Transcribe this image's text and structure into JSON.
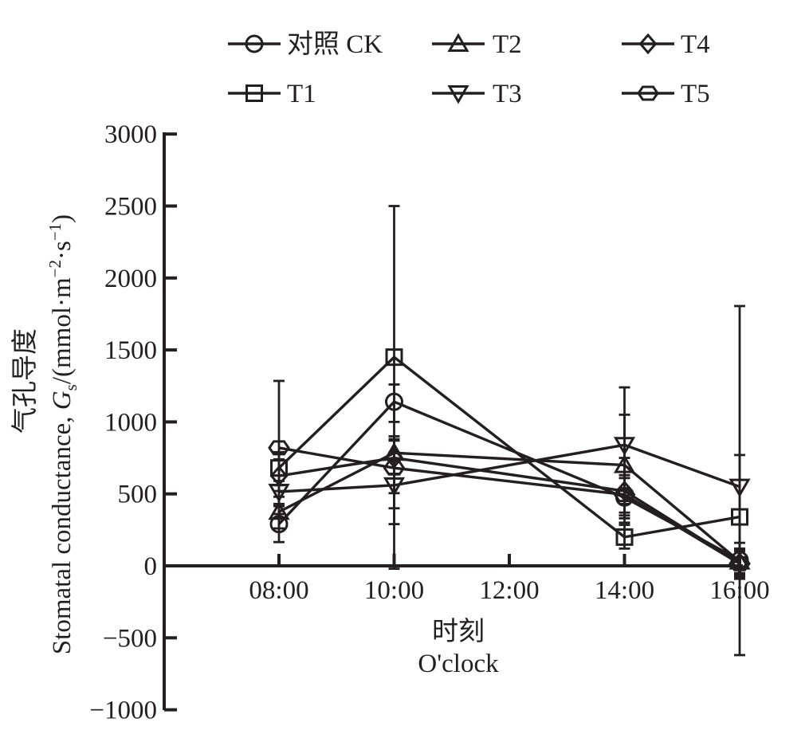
{
  "figure": {
    "background": "#ffffff",
    "ink": "#231f20"
  },
  "chart_data": {
    "type": "line",
    "title": "",
    "xlabel_lines": [
      "时刻",
      "O'clock"
    ],
    "ylabel_line1": "气孔导度",
    "ylabel_line2_parts": [
      {
        "t": "Stomatal conductance, "
      },
      {
        "t": "G",
        "italic": true
      },
      {
        "t": "s",
        "script": "sub"
      },
      {
        "t": "/(mmol·m"
      },
      {
        "t": "−2",
        "script": "sup"
      },
      {
        "t": "·s"
      },
      {
        "t": "−1",
        "script": "sup"
      },
      {
        "t": ")"
      }
    ],
    "x_tick_labels": [
      "08:00",
      "10:00",
      "12:00",
      "14:00",
      "16:00"
    ],
    "y_tick_labels": [
      "3000",
      "2500",
      "2000",
      "1500",
      "1000",
      "500",
      "0",
      "−500",
      "−1000"
    ],
    "y_tick_values": [
      3000,
      2500,
      2000,
      1500,
      1000,
      500,
      0,
      -500,
      -1000
    ],
    "ylim": [
      -1000,
      3000
    ],
    "grid": false,
    "legend_position": "top",
    "legend_rows": [
      [
        0,
        2,
        4
      ],
      [
        1,
        3,
        5
      ]
    ],
    "x_data_indices": [
      0,
      1,
      3,
      4
    ],
    "series": [
      {
        "name": "对照 CK",
        "marker": "circle",
        "values": [
          290,
          1140,
          475,
          40
        ],
        "err_low": [
          165,
          1000,
          330,
          -80
        ],
        "err_high": [
          415,
          1260,
          610,
          160
        ]
      },
      {
        "name": "T1",
        "marker": "square",
        "values": [
          680,
          1450,
          200,
          340
        ],
        "err_low": [
          560,
          -20,
          120,
          -90
        ],
        "err_high": [
          790,
          2500,
          285,
          770
        ]
      },
      {
        "name": "T2",
        "marker": "triangle-up",
        "values": [
          375,
          785,
          700,
          30
        ],
        "err_low": [
          260,
          640,
          350,
          -60
        ],
        "err_high": [
          480,
          880,
          1050,
          120
        ]
      },
      {
        "name": "T3",
        "marker": "triangle-down",
        "values": [
          515,
          560,
          840,
          550
        ],
        "err_low": [
          430,
          290,
          430,
          -620
        ],
        "err_high": [
          590,
          790,
          1240,
          1805
        ]
      },
      {
        "name": "T4",
        "marker": "diamond",
        "values": [
          625,
          750,
          520,
          20
        ],
        "err_low": [
          520,
          400,
          300,
          -50
        ],
        "err_high": [
          740,
          870,
          750,
          100
        ]
      },
      {
        "name": "T5",
        "marker": "hexagon",
        "values": [
          820,
          680,
          495,
          15
        ],
        "err_low": [
          360,
          505,
          370,
          -70
        ],
        "err_high": [
          1285,
          900,
          630,
          110
        ]
      }
    ]
  }
}
